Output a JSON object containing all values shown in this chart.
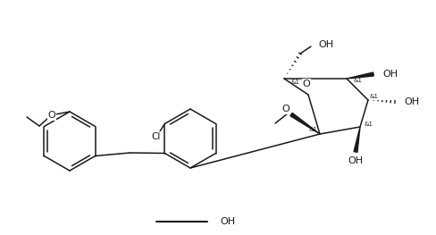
{
  "figsize": [
    4.89,
    2.63
  ],
  "dpi": 100,
  "bg_color": "#ffffff",
  "line_color": "#1a1a1a",
  "line_width": 1.1,
  "font_size": 6.5,
  "xlim": [
    0,
    489
  ],
  "ylim": [
    0,
    263
  ]
}
